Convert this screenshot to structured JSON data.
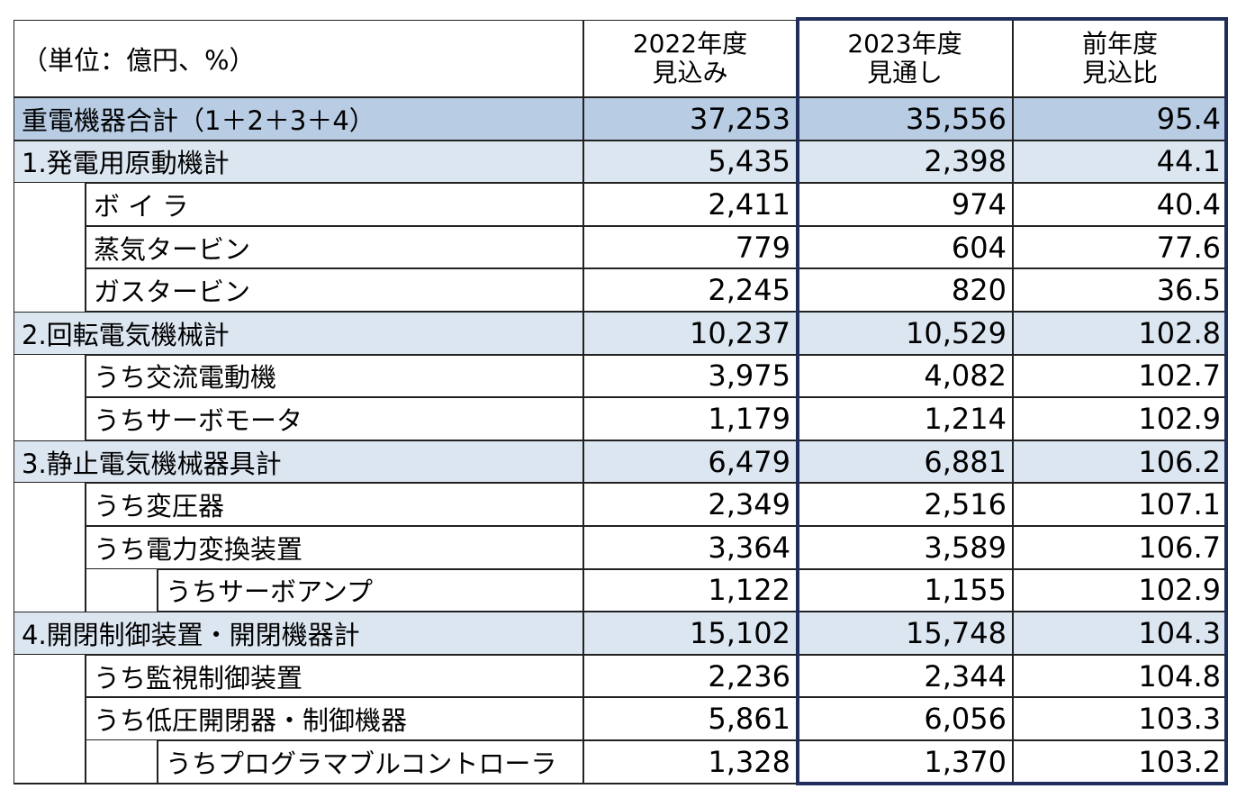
{
  "header": {
    "unit": "（単位：億円、%）",
    "columns": [
      [
        "2022年度",
        "見込み"
      ],
      [
        "2023年度",
        "見通し"
      ],
      [
        "前年度",
        "見込比"
      ]
    ]
  },
  "total": {
    "label": "重電機器合計（1＋2＋3＋4）",
    "values": [
      "37,253",
      "35,556",
      "95.4"
    ]
  },
  "sections": [
    {
      "label": "1.発電用原動機計",
      "values": [
        "5,435",
        "2,398",
        "44.1"
      ],
      "items": [
        {
          "label": "ボ イ ラ",
          "values": [
            "2,411",
            "974",
            "40.4"
          ]
        },
        {
          "label": "蒸気タービン",
          "values": [
            "779",
            "604",
            "77.6"
          ]
        },
        {
          "label": "ガスタービン",
          "values": [
            "2,245",
            "820",
            "36.5"
          ]
        }
      ]
    },
    {
      "label": "2.回転電気機械計",
      "values": [
        "10,237",
        "10,529",
        "102.8"
      ],
      "items": [
        {
          "label": "うち交流電動機",
          "values": [
            "3,975",
            "4,082",
            "102.7"
          ]
        },
        {
          "label": "うちサーボモータ",
          "values": [
            "1,179",
            "1,214",
            "102.9"
          ]
        }
      ]
    },
    {
      "label": "3.静止電気機械器具計",
      "values": [
        "6,479",
        "6,881",
        "106.2"
      ],
      "items": [
        {
          "label": "うち変圧器",
          "values": [
            "2,349",
            "2,516",
            "107.1"
          ]
        },
        {
          "label": "うち電力変換装置",
          "values": [
            "3,364",
            "3,589",
            "106.7"
          ],
          "items": [
            {
              "label": "うちサーボアンプ",
              "values": [
                "1,122",
                "1,155",
                "102.9"
              ]
            }
          ]
        }
      ]
    },
    {
      "label": "4.開閉制御装置・開閉機器計",
      "values": [
        "15,102",
        "15,748",
        "104.3"
      ],
      "items": [
        {
          "label": "うち監視制御装置",
          "values": [
            "2,236",
            "2,344",
            "104.8"
          ]
        },
        {
          "label": "うち低圧開閉器・制御機器",
          "values": [
            "5,861",
            "6,056",
            "103.3"
          ],
          "items": [
            {
              "label": "うちプログラマブルコントローラ",
              "values": [
                "1,328",
                "1,370",
                "103.2"
              ]
            }
          ]
        }
      ]
    }
  ]
}
